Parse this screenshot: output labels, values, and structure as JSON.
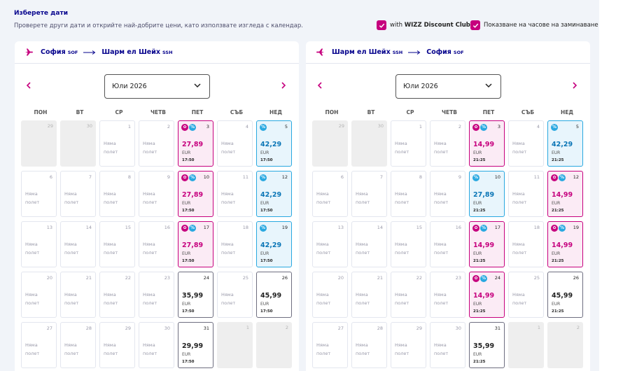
{
  "header": {
    "title": "Изберете дати",
    "subtitle": "Проверете други дати и открийте най-добрите цени, като използвате изгледа с календар.",
    "checkbox_wdc_prefix": "with ",
    "checkbox_wdc_brand": "WIZZ Discount Club",
    "checkbox_times": "Показване на часове на заминаване"
  },
  "weekdays": [
    "ПОН",
    "ВТ",
    "СР",
    "ЧЕТВ",
    "ПЕТ",
    "СЪБ",
    "НЕД"
  ],
  "no_flight": "Няма\nполет",
  "badge_wdc": "✿",
  "badge_price": "%",
  "panels": [
    {
      "from_city": "София",
      "from_code": "SOF",
      "to_city": "Шарм ел Шейх",
      "to_code": "SSH",
      "month": "Юли 2026",
      "days": [
        {
          "d": "29",
          "t": "gray"
        },
        {
          "d": "30",
          "t": "gray"
        },
        {
          "d": "1",
          "t": "nf"
        },
        {
          "d": "2",
          "t": "nf"
        },
        {
          "d": "3",
          "t": "wdc",
          "b": [
            "w",
            "p"
          ],
          "price": "27,89",
          "cur": "EUR",
          "time": "17:50"
        },
        {
          "d": "4",
          "t": "nf"
        },
        {
          "d": "5",
          "t": "low",
          "b": [
            "p"
          ],
          "price": "42,29",
          "cur": "EUR",
          "time": "17:50"
        },
        {
          "d": "6",
          "t": "nf"
        },
        {
          "d": "7",
          "t": "nf"
        },
        {
          "d": "8",
          "t": "nf"
        },
        {
          "d": "9",
          "t": "nf"
        },
        {
          "d": "10",
          "t": "wdc",
          "b": [
            "w",
            "p"
          ],
          "price": "27,89",
          "cur": "EUR",
          "time": "17:50"
        },
        {
          "d": "11",
          "t": "nf"
        },
        {
          "d": "12",
          "t": "low",
          "b": [
            "p"
          ],
          "price": "42,29",
          "cur": "EUR",
          "time": "17:50"
        },
        {
          "d": "13",
          "t": "nf"
        },
        {
          "d": "14",
          "t": "nf"
        },
        {
          "d": "15",
          "t": "nf"
        },
        {
          "d": "16",
          "t": "nf"
        },
        {
          "d": "17",
          "t": "wdc",
          "b": [
            "w",
            "p"
          ],
          "price": "27,89",
          "cur": "EUR",
          "time": "17:50"
        },
        {
          "d": "18",
          "t": "nf"
        },
        {
          "d": "19",
          "t": "low",
          "b": [
            "p"
          ],
          "price": "42,29",
          "cur": "EUR",
          "time": "17:50"
        },
        {
          "d": "20",
          "t": "nf"
        },
        {
          "d": "21",
          "t": "nf"
        },
        {
          "d": "22",
          "t": "nf"
        },
        {
          "d": "23",
          "t": "nf"
        },
        {
          "d": "24",
          "t": "fl",
          "price": "35,99",
          "cur": "EUR",
          "time": "17:50"
        },
        {
          "d": "25",
          "t": "nf"
        },
        {
          "d": "26",
          "t": "fl",
          "price": "45,99",
          "cur": "EUR",
          "time": "17:50"
        },
        {
          "d": "27",
          "t": "nf"
        },
        {
          "d": "28",
          "t": "nf"
        },
        {
          "d": "29",
          "t": "nf"
        },
        {
          "d": "30",
          "t": "nf"
        },
        {
          "d": "31",
          "t": "fl",
          "price": "29,99",
          "cur": "EUR",
          "time": "17:50"
        },
        {
          "d": "1",
          "t": "gray"
        },
        {
          "d": "2",
          "t": "gray"
        }
      ]
    },
    {
      "from_city": "Шарм ел Шейх",
      "from_code": "SSH",
      "to_city": "София",
      "to_code": "SOF",
      "month": "Юли 2026",
      "days": [
        {
          "d": "29",
          "t": "gray"
        },
        {
          "d": "30",
          "t": "gray"
        },
        {
          "d": "1",
          "t": "nf"
        },
        {
          "d": "2",
          "t": "nf"
        },
        {
          "d": "3",
          "t": "wdc",
          "b": [
            "w",
            "p"
          ],
          "price": "14,99",
          "cur": "EUR",
          "time": "21:25"
        },
        {
          "d": "4",
          "t": "nf"
        },
        {
          "d": "5",
          "t": "low",
          "b": [
            "p"
          ],
          "price": "42,29",
          "cur": "EUR",
          "time": "21:25"
        },
        {
          "d": "6",
          "t": "nf"
        },
        {
          "d": "7",
          "t": "nf"
        },
        {
          "d": "8",
          "t": "nf"
        },
        {
          "d": "9",
          "t": "nf"
        },
        {
          "d": "10",
          "t": "low",
          "b": [
            "p"
          ],
          "price": "27,89",
          "cur": "EUR",
          "time": "21:25"
        },
        {
          "d": "11",
          "t": "nf"
        },
        {
          "d": "12",
          "t": "wdc",
          "b": [
            "w",
            "p"
          ],
          "price": "14,99",
          "cur": "EUR",
          "time": "21:25"
        },
        {
          "d": "13",
          "t": "nf"
        },
        {
          "d": "14",
          "t": "nf"
        },
        {
          "d": "15",
          "t": "nf"
        },
        {
          "d": "16",
          "t": "nf"
        },
        {
          "d": "17",
          "t": "wdc",
          "b": [
            "w",
            "p"
          ],
          "price": "14,99",
          "cur": "EUR",
          "time": "21:25"
        },
        {
          "d": "18",
          "t": "nf"
        },
        {
          "d": "19",
          "t": "wdc",
          "b": [
            "w",
            "p"
          ],
          "price": "14,99",
          "cur": "EUR",
          "time": "21:25"
        },
        {
          "d": "20",
          "t": "nf"
        },
        {
          "d": "21",
          "t": "nf"
        },
        {
          "d": "22",
          "t": "nf"
        },
        {
          "d": "23",
          "t": "nf"
        },
        {
          "d": "24",
          "t": "wdc",
          "b": [
            "w",
            "p"
          ],
          "price": "14,99",
          "cur": "EUR",
          "time": "21:25"
        },
        {
          "d": "25",
          "t": "nf"
        },
        {
          "d": "26",
          "t": "fl",
          "price": "45,99",
          "cur": "EUR",
          "time": "21:25"
        },
        {
          "d": "27",
          "t": "nf"
        },
        {
          "d": "28",
          "t": "nf"
        },
        {
          "d": "29",
          "t": "nf"
        },
        {
          "d": "30",
          "t": "nf"
        },
        {
          "d": "31",
          "t": "fl",
          "price": "35,99",
          "cur": "EUR",
          "time": "21:25"
        },
        {
          "d": "1",
          "t": "gray"
        },
        {
          "d": "2",
          "t": "gray"
        }
      ]
    }
  ]
}
